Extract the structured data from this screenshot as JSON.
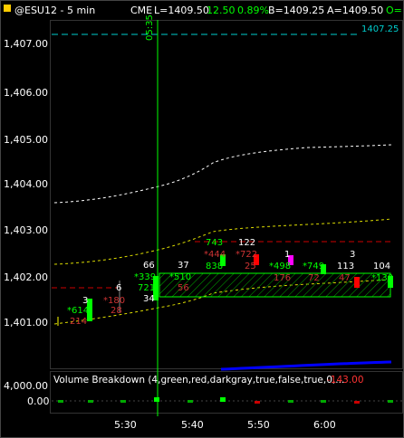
{
  "header": {
    "symbol": "@ESU12 - 5 min",
    "exchange": "CME",
    "last": "L=1409.50",
    "change": "12.50",
    "pct": "0.89%",
    "bid": "B=1409.25",
    "ask": "A=1409.50",
    "open_label": "O="
  },
  "price_axis": {
    "labels": [
      "1,407.00",
      "1,406.00",
      "1,405.00",
      "1,404.00",
      "1,403.00",
      "1,402.00",
      "1,401.00"
    ],
    "reference_label": "1407.25"
  },
  "cursor": {
    "time_label": "05:35"
  },
  "volume_panel": {
    "title": "Volume Breakdown (4,green,red,darkgray,true,false,true,0,...",
    "value": "-143.00",
    "axis_labels": [
      "4,000.00",
      "0.00"
    ]
  },
  "time_axis": {
    "labels": [
      "5:30",
      "5:40",
      "5:50",
      "6:00"
    ]
  },
  "annotations": [
    {
      "text": "3"
    },
    {
      "text": "*614"
    },
    {
      "text": "214"
    },
    {
      "text": "*180"
    },
    {
      "text": "28"
    },
    {
      "text": "6"
    },
    {
      "text": "66"
    },
    {
      "text": "*339"
    },
    {
      "text": "721"
    },
    {
      "text": "34"
    },
    {
      "text": "37"
    },
    {
      "text": "*510"
    },
    {
      "text": "56"
    },
    {
      "text": "743"
    },
    {
      "text": "*444"
    },
    {
      "text": "838"
    },
    {
      "text": "122"
    },
    {
      "text": "*722"
    },
    {
      "text": "25"
    },
    {
      "text": "1"
    },
    {
      "text": "*498"
    },
    {
      "text": "176"
    },
    {
      "text": "*749"
    },
    {
      "text": "72"
    },
    {
      "text": "3"
    },
    {
      "text": "113"
    },
    {
      "text": "47"
    },
    {
      "text": "104"
    },
    {
      "text": "*130"
    }
  ],
  "colors": {
    "background": "#000000",
    "up": "#00ff00",
    "down": "#ff0000",
    "neutral": "#ff00ff",
    "reference_line": "#00cccc",
    "cursor": "#00ff00",
    "volume_line": "#0000ff"
  }
}
